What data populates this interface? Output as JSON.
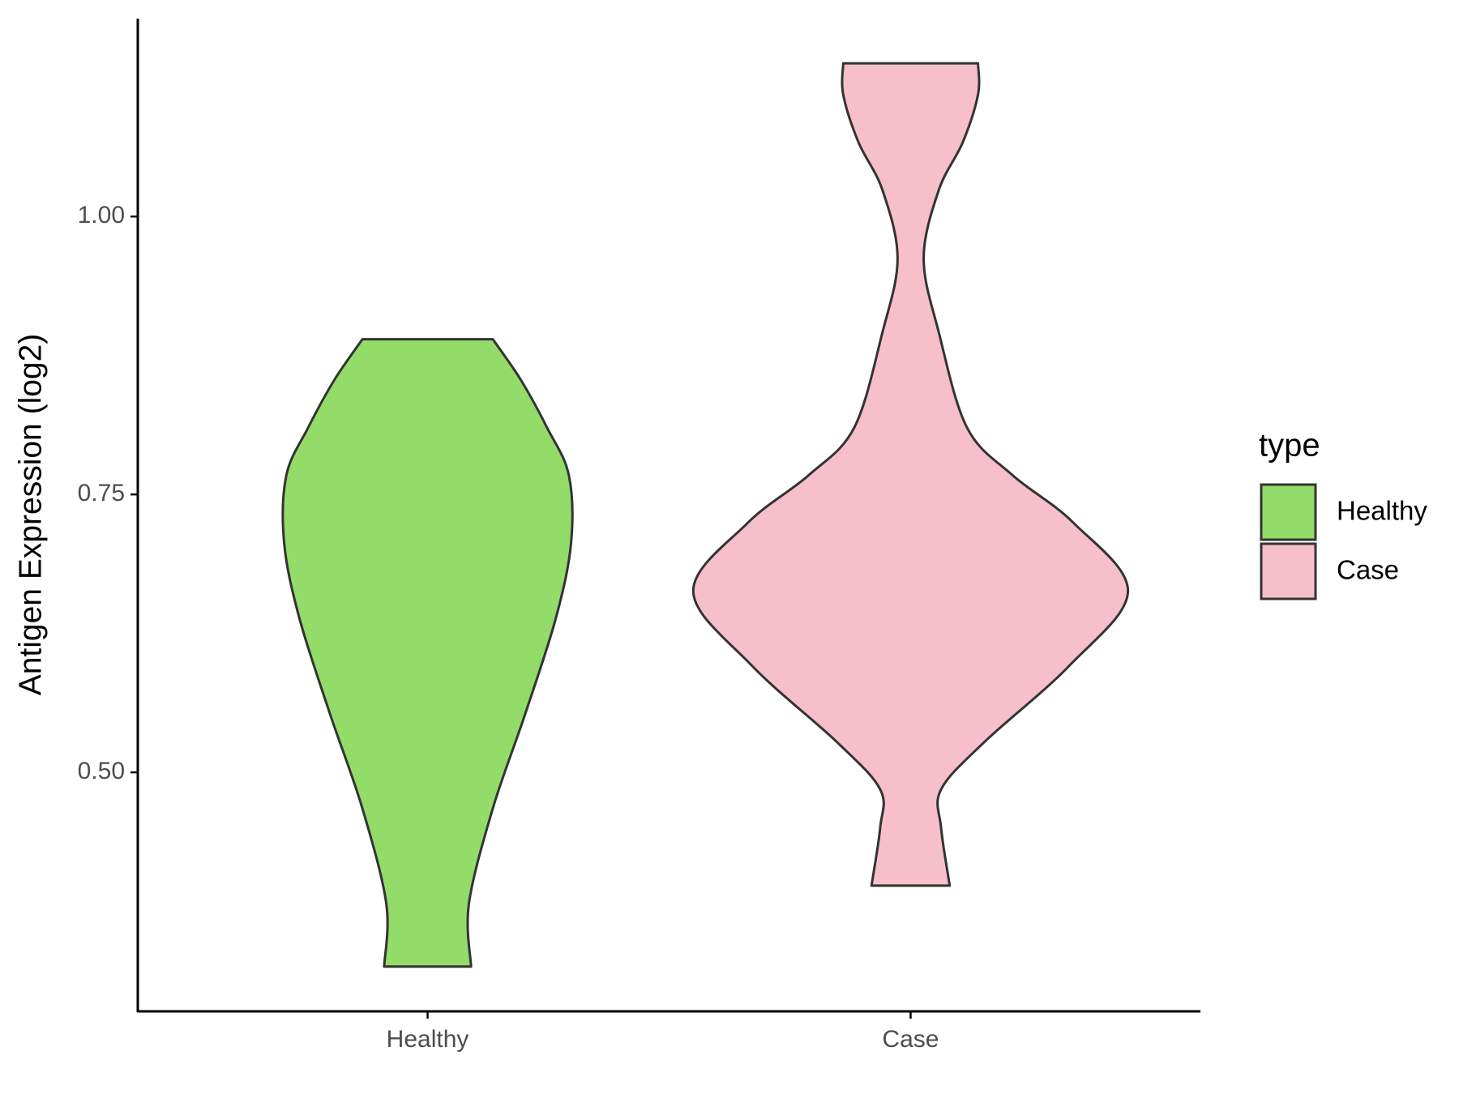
{
  "chart_data": {
    "type": "violin",
    "y_label": "Antigen Expression (log2)",
    "categories": [
      "Healthy",
      "Case"
    ],
    "legend_title": "type",
    "legend": "right",
    "ylim": [
      0.285,
      1.178
    ],
    "yticks": [
      {
        "value": 0.5,
        "label": "0.50"
      },
      {
        "value": 0.75,
        "label": "0.75"
      },
      {
        "value": 1,
        "label": "1.00"
      }
    ],
    "series": [
      {
        "name": "Healthy",
        "color": "#93dc6a",
        "y": [
          0.8896,
          0.8527,
          0.8099,
          0.7671,
          0.7063,
          0.6387,
          0.5531,
          0.4675,
          0.3818,
          0.3253
        ],
        "density": [
          0.3,
          0.43,
          0.55,
          0.65,
          0.66,
          0.59,
          0.45,
          0.3,
          0.19,
          0.2
        ]
      },
      {
        "name": "Case",
        "color": "#f7bfcb",
        "y": [
          1.1378,
          1.1096,
          1.0668,
          1.024,
          0.9623,
          0.8955,
          0.8099,
          0.7671,
          0.7243,
          0.6627,
          0.5959,
          0.5274,
          0.4846,
          0.4503,
          0.3981
        ],
        "density": [
          0.31,
          0.31,
          0.24,
          0.13,
          0.06,
          0.13,
          0.26,
          0.47,
          0.75,
          1,
          0.73,
          0.34,
          0.14,
          0.14,
          0.18
        ]
      }
    ]
  }
}
